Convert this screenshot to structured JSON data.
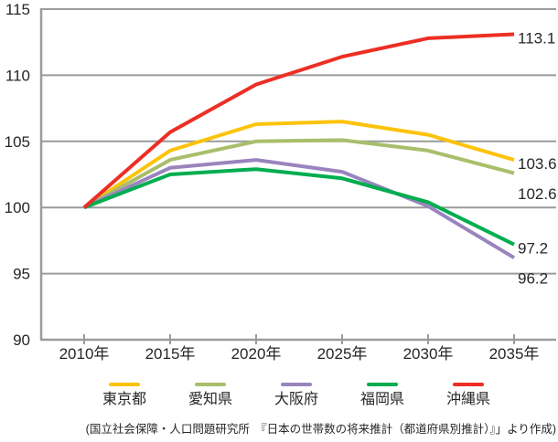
{
  "chart_data": {
    "type": "line",
    "title": "",
    "x_tick_labels": [
      "2010年",
      "2015年",
      "2020年",
      "2025年",
      "2030年",
      "2035年"
    ],
    "y_ticks": [
      90,
      95,
      100,
      105,
      110,
      115
    ],
    "ylim": [
      90,
      115
    ],
    "grid": true,
    "legend_position": "bottom",
    "series": [
      {
        "key": "tokyo",
        "name": "東京都",
        "color": "#FCC30B",
        "values": [
          100,
          104.3,
          106.3,
          106.5,
          105.5,
          103.6
        ],
        "end_label": "103.6"
      },
      {
        "key": "aichi",
        "name": "愛知県",
        "color": "#A9BE6B",
        "values": [
          100,
          103.6,
          105.0,
          105.1,
          104.3,
          102.6
        ],
        "end_label": "102.6"
      },
      {
        "key": "osaka",
        "name": "大阪府",
        "color": "#9A84BE",
        "values": [
          100,
          103.0,
          103.6,
          102.7,
          100.1,
          96.2
        ],
        "end_label": "96.2"
      },
      {
        "key": "fukuoka",
        "name": "福岡県",
        "color": "#00AD4F",
        "values": [
          100,
          102.5,
          102.9,
          102.2,
          100.4,
          97.2
        ],
        "end_label": "97.2"
      },
      {
        "key": "okinawa",
        "name": "沖縄県",
        "color": "#EE2E24",
        "values": [
          100,
          105.7,
          109.3,
          111.4,
          112.8,
          113.1
        ],
        "end_label": "113.1"
      }
    ],
    "source_note": "(国立社会保障・人口問題研究所　『日本の世帯数の将来推計（都道府県別推計）』」より作成)"
  },
  "colors": {
    "grid": "#9B9B9B",
    "axis": "#9B9B9B",
    "text": "#262626"
  }
}
